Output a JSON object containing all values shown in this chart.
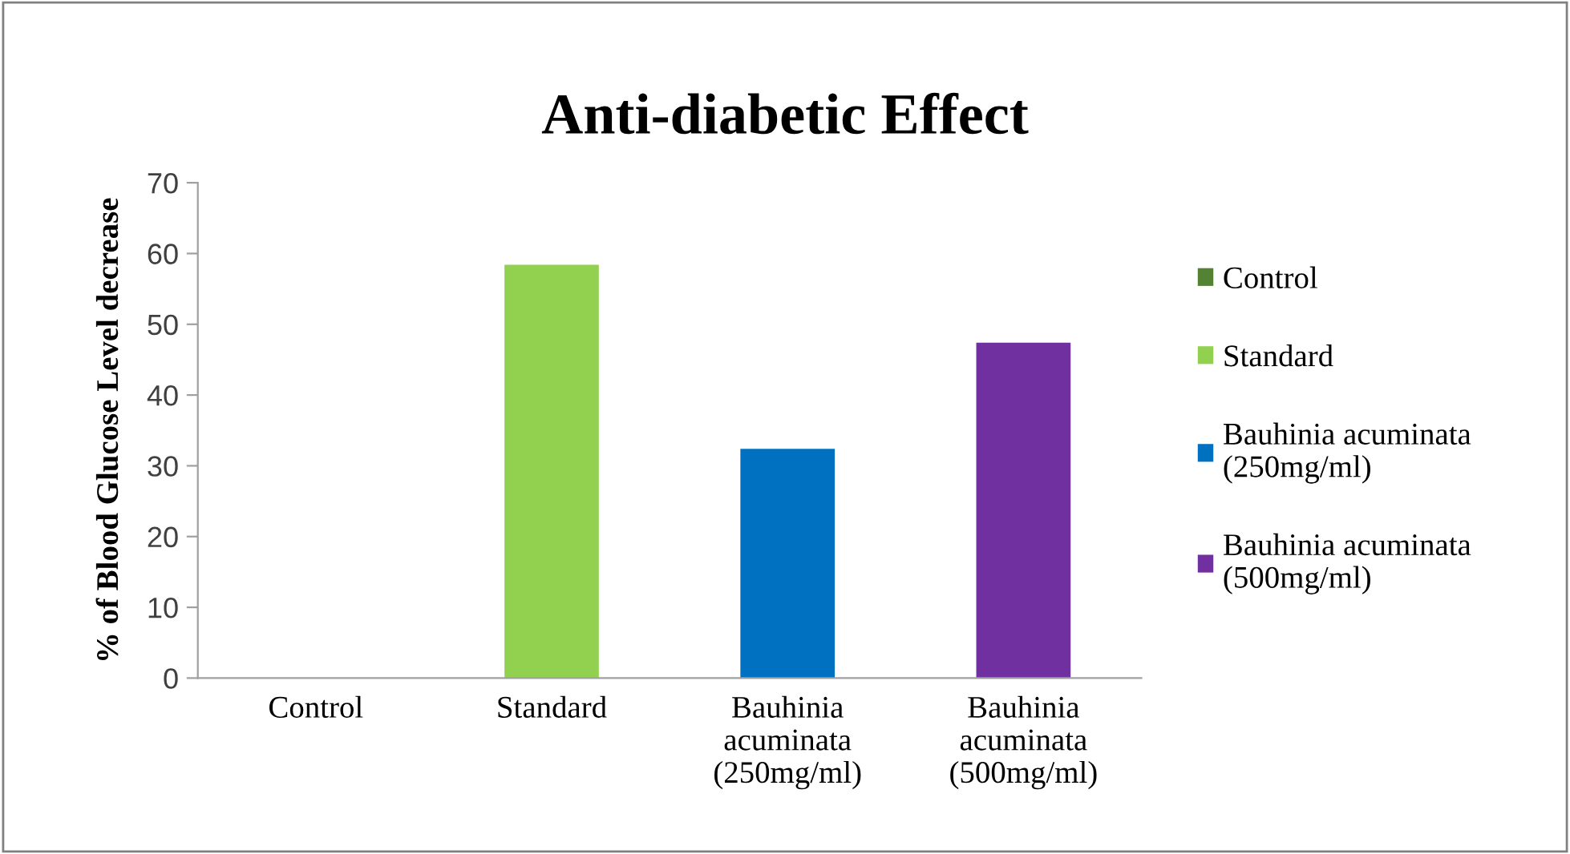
{
  "chart_data": {
    "type": "bar",
    "title": "Anti-diabetic Effect",
    "ylabel": "% of Blood Glucose Level decrease",
    "categories": [
      "Control",
      "Standard",
      "Bauhinia\nacuminata\n(250mg/ml)",
      "Bauhinia\nacuminata\n(500mg/ml)"
    ],
    "series": [
      {
        "name": "Control",
        "color": "#548235",
        "values": [
          0,
          null,
          null,
          null
        ]
      },
      {
        "name": "Standard",
        "color": "#92d050",
        "values": [
          null,
          58.4,
          null,
          null
        ]
      },
      {
        "name": "Bauhinia acuminata\n(250mg/ml)",
        "color": "#0070c0",
        "values": [
          null,
          null,
          32.4,
          null
        ]
      },
      {
        "name": "Bauhinia acuminata\n(500mg/ml)",
        "color": "#7030a0",
        "values": [
          null,
          null,
          null,
          47.4
        ]
      }
    ],
    "ylim": [
      0,
      70
    ],
    "yticks": [
      0,
      10,
      20,
      30,
      40,
      50,
      60,
      70
    ],
    "grid": false,
    "legend": "right"
  }
}
